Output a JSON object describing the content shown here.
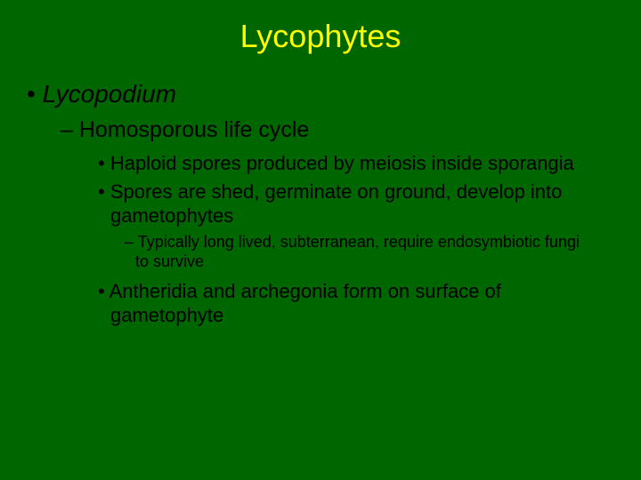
{
  "background_color": "#006600",
  "title_color": "#ffff00",
  "text_color": "#000000",
  "title": "Lycophytes",
  "title_fontsize": 36,
  "bullets": {
    "l1_1": "Lycopodium",
    "l2_1": "Homosporous life cycle",
    "l3_1": "Haploid spores produced by meiosis inside sporangia",
    "l3_2": "Spores are shed, germinate on ground, develop into gametophytes",
    "l4_1": "Typically long lived, subterranean, require endosymbiotic fungi to survive",
    "l3_3": "Antheridia and archegonia form on surface of gametophyte"
  },
  "fontsizes": {
    "l1": 28,
    "l2": 25,
    "l3": 22,
    "l4": 18
  }
}
